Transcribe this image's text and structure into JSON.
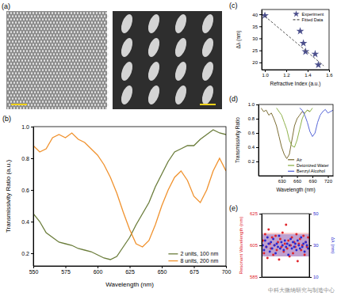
{
  "chart_data": [
    {
      "type": "image",
      "title": "(a)"
    },
    {
      "type": "line",
      "title": "(b)",
      "x_label": "Wavelength (nm)",
      "y_label": "Transmissivity Ratio (a.u.)",
      "xlim": [
        550,
        700
      ],
      "ylim": [
        0.12,
        1.0
      ],
      "xticks": [
        550,
        575,
        600,
        625,
        650,
        675,
        700
      ],
      "yticks": [
        0.2,
        0.4,
        0.6,
        0.8,
        {
          "value": 1.0,
          "label": "1.0"
        }
      ],
      "legend": "lower right",
      "x": [
        550,
        555,
        560,
        565,
        570,
        575,
        580,
        585,
        590,
        595,
        600,
        605,
        610,
        615,
        620,
        625,
        630,
        635,
        640,
        645,
        650,
        655,
        660,
        665,
        670,
        675,
        680,
        685,
        690,
        695,
        700
      ],
      "series": [
        {
          "name": "2 units, 100 nm",
          "color": "#6b7d3b",
          "values": [
            0.45,
            0.4,
            0.33,
            0.3,
            0.27,
            0.26,
            0.25,
            0.23,
            0.22,
            0.21,
            0.19,
            0.17,
            0.16,
            0.18,
            0.24,
            0.3,
            0.38,
            0.45,
            0.52,
            0.62,
            0.7,
            0.78,
            0.84,
            0.86,
            0.88,
            0.88,
            0.92,
            0.95,
            0.98,
            0.96,
            0.95
          ]
        },
        {
          "name": "8 units, 200 nm",
          "color": "#f0922e",
          "values": [
            0.88,
            0.84,
            0.86,
            0.93,
            0.95,
            0.93,
            0.96,
            0.92,
            0.9,
            0.86,
            0.82,
            0.76,
            0.68,
            0.58,
            0.46,
            0.35,
            0.26,
            0.24,
            0.28,
            0.38,
            0.5,
            0.6,
            0.68,
            0.72,
            0.66,
            0.56,
            0.52,
            0.6,
            0.72,
            0.8,
            0.72
          ]
        }
      ]
    },
    {
      "type": "scatter",
      "title": "(c)",
      "x_label": "Refractive Index (a.u.)",
      "y_label": "Δλ (nm)",
      "xlim": [
        0.97,
        1.6
      ],
      "ylim": [
        17,
        42
      ],
      "xticks": [
        {
          "value": 1.0,
          "label": "1.0"
        },
        1.2,
        1.4,
        1.6
      ],
      "yticks": [
        20,
        25,
        30,
        35,
        40
      ],
      "legend": "upper right",
      "series": [
        {
          "name": "Experiment",
          "type": "scatter",
          "marker": "star",
          "color": "#4b4f8c",
          "x": [
            1.0,
            1.33,
            1.36,
            1.38,
            1.47,
            1.5
          ],
          "values": [
            39.5,
            33,
            28,
            24.5,
            23.5,
            19
          ]
        },
        {
          "name": "Fitted Data",
          "type": "line",
          "line_style": "dashed",
          "color": "#555555",
          "x": [
            1.0,
            1.55
          ],
          "values": [
            39.2,
            18.6
          ]
        }
      ]
    },
    {
      "type": "line",
      "title": "(d)",
      "x_label": "Wavelength (nm)",
      "y_label": "Transmissivity Ratio",
      "xlim": [
        585,
        730
      ],
      "ylim": [
        0.0,
        1.0
      ],
      "xticks": [
        630,
        660,
        690,
        720
      ],
      "yticks": [
        0.2,
        0.4,
        0.6,
        0.8,
        {
          "value": 1.0,
          "label": "1.0"
        }
      ],
      "legend": "lower right",
      "series": [
        {
          "name": "Air",
          "color": "#7d6f36",
          "x": [
            590,
            595,
            600,
            605,
            610,
            615,
            620,
            625,
            630,
            635,
            640,
            645,
            650,
            655,
            660,
            665,
            670,
            675,
            680,
            685
          ],
          "values": [
            0.95,
            0.9,
            0.92,
            0.85,
            0.88,
            0.8,
            0.7,
            0.55,
            0.4,
            0.3,
            0.24,
            0.3,
            0.5,
            0.7,
            0.8,
            0.85,
            0.9,
            0.88,
            0.92,
            0.9
          ]
        },
        {
          "name": "Deionized Water",
          "color": "#8fb24b",
          "x": [
            620,
            625,
            630,
            635,
            640,
            645,
            650,
            655,
            660,
            665,
            670,
            675,
            680,
            685,
            690
          ],
          "values": [
            0.95,
            0.9,
            0.85,
            0.75,
            0.65,
            0.5,
            0.42,
            0.4,
            0.5,
            0.65,
            0.8,
            0.88,
            0.92,
            0.9,
            0.95
          ]
        },
        {
          "name": "Benzyl Alcohol",
          "color": "#5868d8",
          "x": [
            665,
            670,
            675,
            680,
            685,
            690,
            695,
            700,
            705,
            710,
            715,
            720,
            725,
            730
          ],
          "values": [
            0.95,
            0.92,
            0.85,
            0.75,
            0.62,
            0.55,
            0.6,
            0.75,
            0.85,
            0.9,
            0.93,
            0.88,
            0.9,
            0.92
          ]
        }
      ]
    },
    {
      "type": "scatter",
      "title": "(e)",
      "y_label": "Resonant Wavelength (nm)",
      "y2_label": "Δλ (nm)",
      "tick_labels": "y",
      "x": [
        1,
        2,
        3,
        4,
        5,
        6,
        7,
        8,
        9,
        10,
        11,
        12,
        13,
        14,
        15,
        16,
        17,
        18,
        19,
        20,
        21,
        22,
        23,
        24,
        25,
        26,
        27,
        28,
        29,
        30,
        31,
        32,
        33,
        34,
        35,
        36,
        37,
        38,
        39,
        40
      ],
      "xlim": [
        0,
        41
      ],
      "ylim": [
        585,
        625
      ],
      "yticks": [
        585,
        605,
        625
      ],
      "y2lim": [
        10,
        50
      ],
      "y2ticks": [
        10,
        30,
        50
      ],
      "y_band": [
        598,
        613
      ],
      "y2_band": [
        23,
        37
      ],
      "series": [
        {
          "color": "#e0242b",
          "marker": "circle",
          "values": [
            608,
            600,
            612,
            604,
            597,
            615,
            606,
            603,
            610,
            599,
            605,
            611,
            602,
            607,
            596,
            609,
            604,
            613,
            601,
            606,
            618,
            603,
            608,
            598,
            605,
            610,
            600,
            607,
            604,
            612,
            595,
            606,
            609,
            602,
            605,
            611,
            599,
            607,
            604,
            610
          ]
        },
        {
          "color": "#2a2ad0",
          "marker": "circle",
          "axis": "y2",
          "values": [
            30,
            27,
            33,
            29,
            35,
            31,
            26,
            32,
            28,
            34,
            30,
            25,
            31,
            29,
            36,
            28,
            32,
            30,
            27,
            33,
            29,
            31,
            24,
            30,
            34,
            28,
            32,
            29,
            31,
            27,
            33,
            30,
            28,
            35,
            29,
            31,
            26,
            32,
            30,
            28
          ]
        }
      ]
    }
  ],
  "watermark": "中科大微纳研究与制造中心"
}
